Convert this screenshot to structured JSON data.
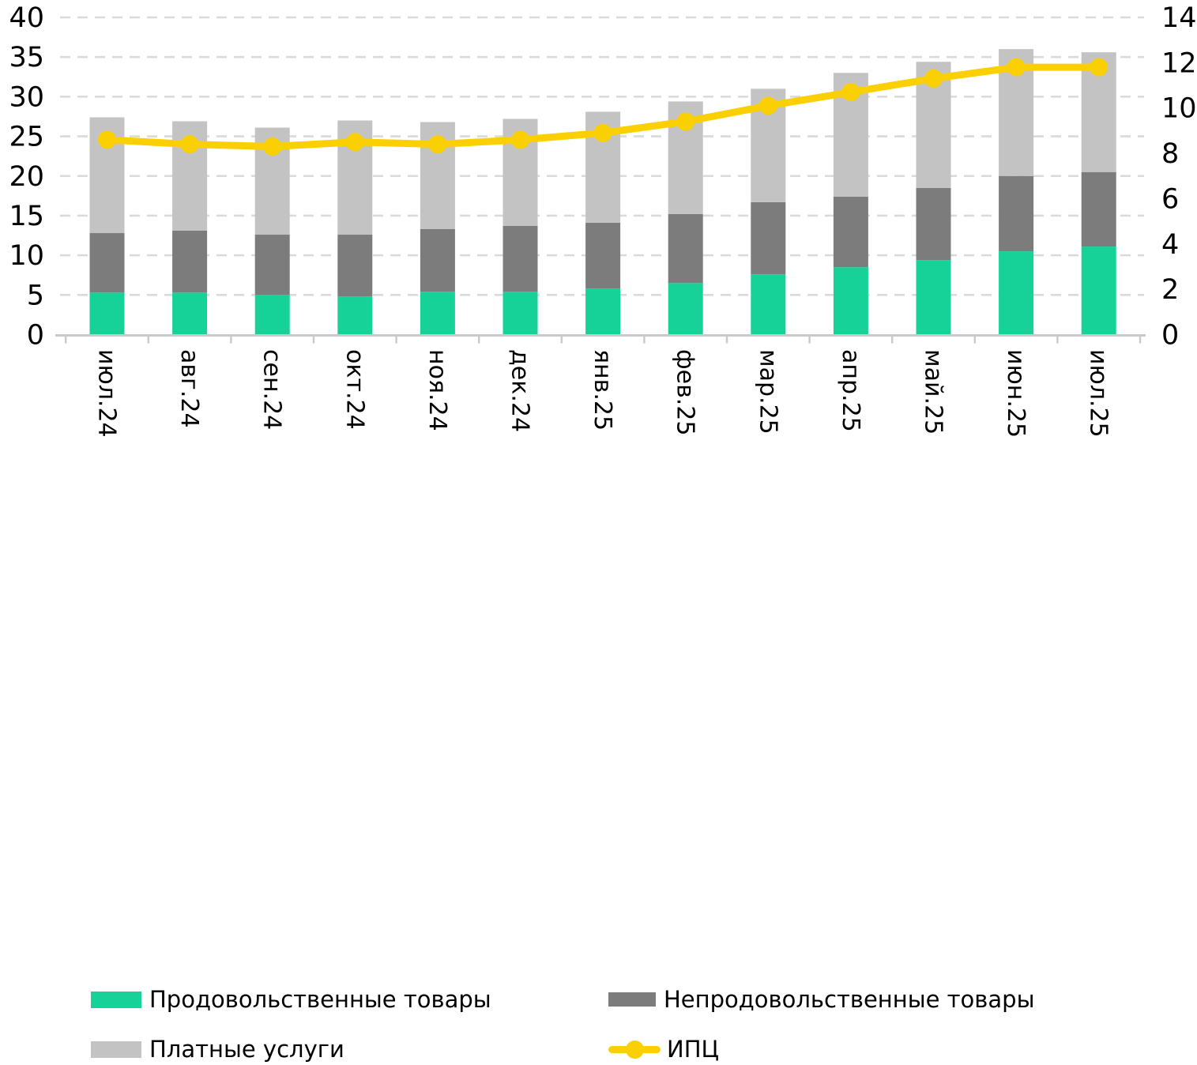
{
  "chart_data": {
    "type": "bar",
    "subtype": "stacked-bars-with-line",
    "categories": [
      "июл.24",
      "авг.24",
      "сен.24",
      "окт.24",
      "ноя.24",
      "дек.24",
      "янв.25",
      "фев.25",
      "мар.25",
      "апр.25",
      "май.25",
      "июн.25",
      "июл.25"
    ],
    "series": [
      {
        "name": "Продовольственные товары",
        "type": "bar",
        "color": "#16D299",
        "values": [
          5.3,
          5.3,
          5.0,
          4.8,
          5.4,
          5.4,
          5.8,
          6.5,
          7.6,
          8.5,
          9.4,
          10.5,
          11.1
        ]
      },
      {
        "name": "Непродовольственные товары",
        "type": "bar",
        "color": "#7C7C7C",
        "values": [
          7.5,
          7.8,
          7.6,
          7.8,
          7.9,
          8.3,
          8.3,
          8.7,
          9.1,
          8.9,
          9.1,
          9.5,
          9.4
        ]
      },
      {
        "name": "Платные услуги",
        "type": "bar",
        "color": "#C3C3C3",
        "values": [
          14.6,
          13.8,
          13.5,
          14.4,
          13.5,
          13.5,
          14.0,
          14.2,
          14.3,
          15.6,
          15.9,
          16.0,
          15.1
        ]
      },
      {
        "name": "ИПЦ",
        "type": "line",
        "axis": "right",
        "color": "#FBD002",
        "values": [
          8.6,
          8.4,
          8.3,
          8.5,
          8.4,
          8.6,
          8.9,
          9.4,
          10.1,
          10.7,
          11.3,
          11.8,
          11.8
        ]
      }
    ],
    "left_axis": {
      "min": 0,
      "max": 40,
      "step": 5,
      "ticks": [
        "0",
        "5",
        "10",
        "15",
        "20",
        "25",
        "30",
        "35",
        "40"
      ]
    },
    "right_axis": {
      "min": 0,
      "max": 14,
      "step": 2,
      "ticks": [
        "0",
        "2",
        "4",
        "6",
        "8",
        "10",
        "12",
        "14"
      ]
    },
    "grid": true,
    "grid_style": "dashed",
    "legend_position": "bottom",
    "colors": {
      "grid": "#DADADA",
      "axis_line": "#C9C9C9",
      "text": "#000000",
      "background": "#FFFFFF"
    }
  },
  "legend": {
    "items": [
      {
        "label": "Продовольственные товары",
        "marker": "bar",
        "color": "#16D299"
      },
      {
        "label": "Непродовольственные товары",
        "marker": "bar",
        "color": "#7C7C7C"
      },
      {
        "label": "Платные услуги",
        "marker": "bar",
        "color": "#C3C3C3"
      },
      {
        "label": "ИПЦ",
        "marker": "line",
        "color": "#FBD002"
      }
    ]
  }
}
